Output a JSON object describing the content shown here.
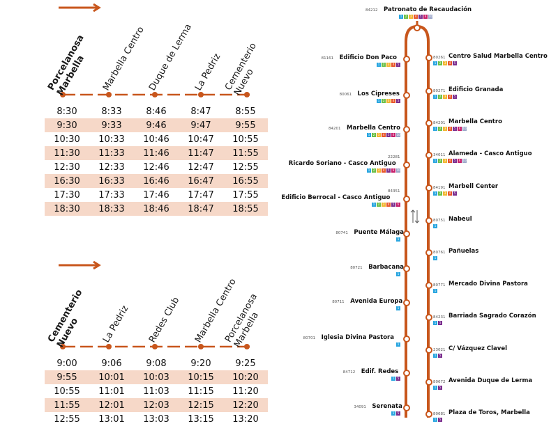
{
  "colors": {
    "accent": "#c8561c",
    "shade": "#f6d8c8",
    "line_colors": [
      "#2aa6e0",
      "#6cc04a",
      "#f2b632",
      "#e8562a",
      "#c61d6a",
      "#7b2e8e",
      "#9aa5c8"
    ]
  },
  "table1": {
    "stops": [
      "Porcelanosa\nMarbella",
      "Marbella Centro",
      "Duque de Lerma",
      "La Pedriz",
      "Cementerio\nNuevo"
    ],
    "rows": [
      [
        "8:30",
        "8:33",
        "8:46",
        "8:47",
        "8:55"
      ],
      [
        "9:30",
        "9:33",
        "9:46",
        "9:47",
        "9:55"
      ],
      [
        "10:30",
        "10:33",
        "10:46",
        "10:47",
        "10:55"
      ],
      [
        "11:30",
        "11:33",
        "11:46",
        "11:47",
        "11:55"
      ],
      [
        "12:30",
        "12:33",
        "12:46",
        "12:47",
        "12:55"
      ],
      [
        "16:30",
        "16:33",
        "16:46",
        "16:47",
        "16:55"
      ],
      [
        "17:30",
        "17:33",
        "17:46",
        "17:47",
        "17:55"
      ],
      [
        "18:30",
        "18:33",
        "18:46",
        "18:47",
        "18:55"
      ]
    ]
  },
  "table2": {
    "stops": [
      "Cementerio\nNuevo",
      "La Pedriz",
      "Redes Club",
      "Marbella Centro",
      "Porcelanosa\nMarbella"
    ],
    "rows": [
      [
        "9:00",
        "9:06",
        "9:08",
        "9:20",
        "9:25"
      ],
      [
        "9:55",
        "10:01",
        "10:03",
        "10:15",
        "10:20"
      ],
      [
        "10:55",
        "11:01",
        "11:03",
        "11:15",
        "11:20"
      ],
      [
        "11:55",
        "12:01",
        "12:03",
        "12:15",
        "12:20"
      ],
      [
        "12:55",
        "13:01",
        "13:03",
        "13:15",
        "13:20"
      ]
    ]
  },
  "route": {
    "top": {
      "code": "84212",
      "name": "Patronato de Recaudación",
      "lines": [
        "1",
        "2",
        "3",
        "4",
        "5",
        "6",
        "10"
      ]
    },
    "left": [
      {
        "code": "81161",
        "name": "Edificio Don Paco",
        "lines": [
          "1",
          "2",
          "3",
          "4",
          "5"
        ]
      },
      {
        "code": "80061",
        "name": "Los Cipreses",
        "lines": [
          "1",
          "2",
          "3",
          "4",
          "5"
        ]
      },
      {
        "code": "84201",
        "name": "Marbella Centro",
        "lines": [
          "1",
          "2",
          "3",
          "4",
          "5",
          "6",
          "10"
        ]
      },
      {
        "code": "22281",
        "name": "Ricardo Soriano - Casco Antiguo",
        "lines": [
          "1",
          "2",
          "3",
          "4",
          "5",
          "6",
          "10"
        ]
      },
      {
        "code": "84351",
        "name": "Edificio Berrocal - Casco Antiguo",
        "lines": [
          "1",
          "2",
          "3",
          "4",
          "5",
          "6"
        ]
      },
      {
        "code": "80741",
        "name": "Puente Málaga",
        "lines": [
          "1"
        ]
      },
      {
        "code": "80721",
        "name": "Barbacana",
        "lines": [
          "1"
        ]
      },
      {
        "code": "80711",
        "name": "Avenida Europa",
        "lines": [
          "1"
        ]
      },
      {
        "code": "80701",
        "name": "Iglesia Divina Pastora",
        "lines": [
          "1"
        ]
      },
      {
        "code": "84712",
        "name": "Edif. Redes",
        "lines": [
          "1",
          "5"
        ]
      },
      {
        "code": "34091",
        "name": "Serenata",
        "lines": [
          "1",
          "5"
        ]
      }
    ],
    "right": [
      {
        "code": "80261",
        "name": "Centro Salud Marbella Centro",
        "lines": [
          "1",
          "2",
          "3",
          "4",
          "5"
        ]
      },
      {
        "code": "80271",
        "name": "Edificio Granada",
        "lines": [
          "1",
          "2",
          "3",
          "4",
          "5"
        ]
      },
      {
        "code": "84201",
        "name": "Marbella Centro",
        "lines": [
          "1",
          "2",
          "3",
          "4",
          "5",
          "6",
          "10"
        ]
      },
      {
        "code": "34011",
        "name": "Alameda - Casco Antiguo",
        "lines": [
          "1",
          "2",
          "3",
          "4",
          "5",
          "6",
          "10"
        ]
      },
      {
        "code": "84191",
        "name": "Marbell Center",
        "lines": [
          "1",
          "2",
          "3",
          "4",
          "5"
        ]
      },
      {
        "code": "80751",
        "name": "Nabeul",
        "lines": [
          "1"
        ]
      },
      {
        "code": "80761",
        "name": "Pañuelas",
        "lines": [
          "1"
        ]
      },
      {
        "code": "80771",
        "name": "Mercado Divina Pastora",
        "lines": [
          "1"
        ]
      },
      {
        "code": "84231",
        "name": "Barriada Sagrado Corazón",
        "lines": [
          "1",
          "5"
        ]
      },
      {
        "code": "23021",
        "name": "C/ Vázquez Clavel",
        "lines": [
          "1",
          "5"
        ]
      },
      {
        "code": "80672",
        "name": "Avenida Duque de Lerma",
        "lines": [
          "1",
          "5"
        ]
      },
      {
        "code": "80681",
        "name": "Plaza de Toros, Marbella",
        "lines": [
          "1",
          "5"
        ]
      }
    ]
  }
}
